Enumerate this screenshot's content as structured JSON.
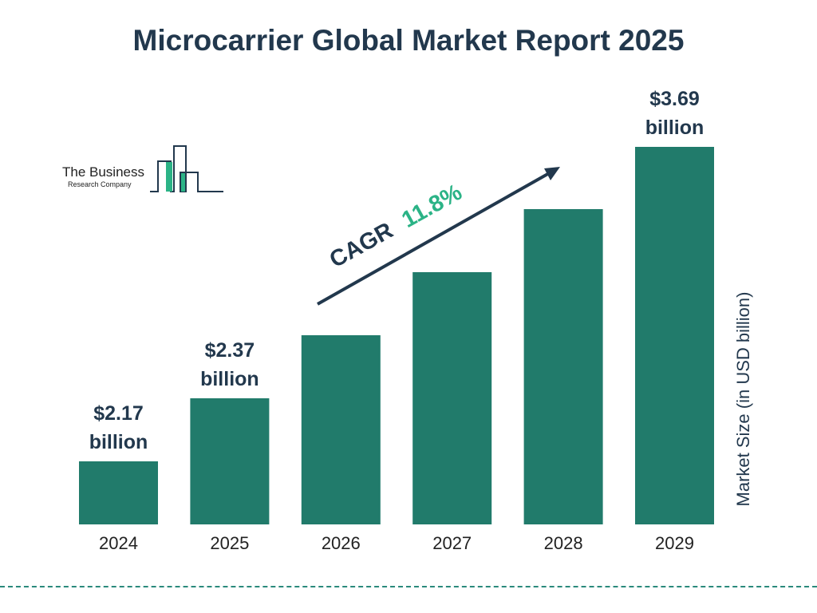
{
  "chart_data": {
    "type": "bar",
    "title": "Microcarrier Global Market Report 2025",
    "ylabel": "Market Size (in USD billion)",
    "categories": [
      "2024",
      "2025",
      "2026",
      "2027",
      "2028",
      "2029"
    ],
    "values": [
      2.17,
      2.37,
      2.65,
      2.96,
      3.31,
      3.69
    ],
    "data_labels": [
      "$2.17 billion",
      "$2.37 billion",
      "",
      "",
      "",
      "$3.69 billion"
    ],
    "bar_color": "#217b6b",
    "grid": false,
    "annotation": {
      "label": "CAGR",
      "value": "11.8%",
      "value_color": "#2bb386",
      "arrow": "up-right"
    }
  },
  "logo": {
    "line1": "The Business",
    "line2": "Research Company"
  }
}
